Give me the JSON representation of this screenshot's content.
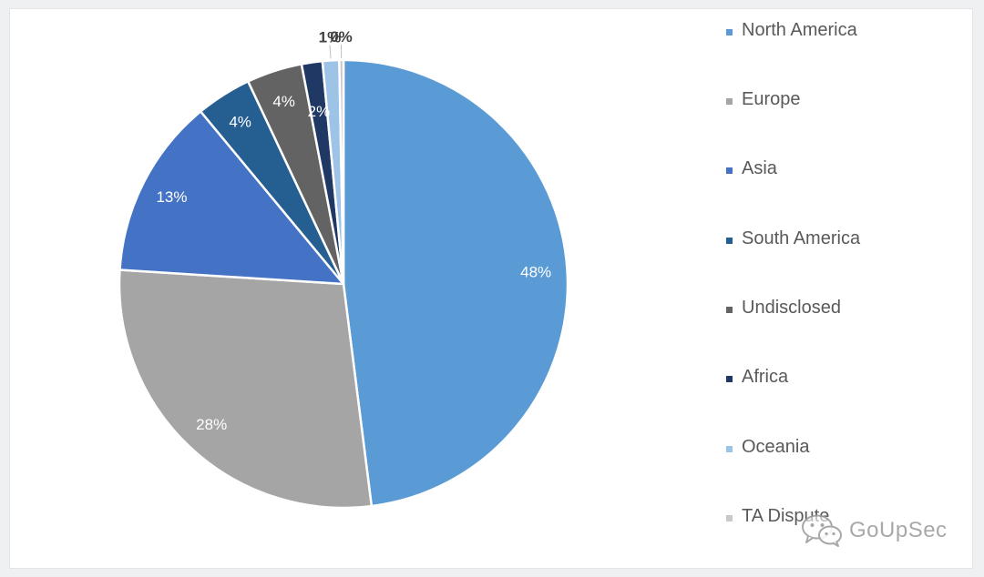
{
  "chart_data": {
    "type": "pie",
    "title": "",
    "slices": [
      {
        "label": "North America",
        "value": 48,
        "display": "48%",
        "color": "#5b9bd5"
      },
      {
        "label": "Europe",
        "value": 28,
        "display": "28%",
        "color": "#a5a5a5"
      },
      {
        "label": "Asia",
        "value": 13,
        "display": "13%",
        "color": "#4472c4"
      },
      {
        "label": "South America",
        "value": 4,
        "display": "4%",
        "color": "#255e91"
      },
      {
        "label": "Undisclosed",
        "value": 4,
        "display": "4%",
        "color": "#636363"
      },
      {
        "label": "Africa",
        "value": 1.5,
        "display": "2%",
        "color": "#1f3864"
      },
      {
        "label": "Oceania",
        "value": 1.2,
        "display": "1%",
        "color": "#9dc3e6"
      },
      {
        "label": "TA Dispute",
        "value": 0.3,
        "display": "0%",
        "color": "#c9c9c9"
      }
    ],
    "legend_position": "right"
  },
  "legend": {
    "items": [
      {
        "label": "North America",
        "color": "#5b9bd5"
      },
      {
        "label": "Europe",
        "color": "#a5a5a5"
      },
      {
        "label": "Asia",
        "color": "#4472c4"
      },
      {
        "label": "South America",
        "color": "#255e91"
      },
      {
        "label": "Undisclosed",
        "color": "#636363"
      },
      {
        "label": "Africa",
        "color": "#1f3864"
      },
      {
        "label": "Oceania",
        "color": "#9dc3e6"
      },
      {
        "label": "TA Dispute",
        "color": "#c9c9c9"
      }
    ]
  },
  "watermark": {
    "text": "GoUpSec",
    "icon": "wechat-icon"
  }
}
